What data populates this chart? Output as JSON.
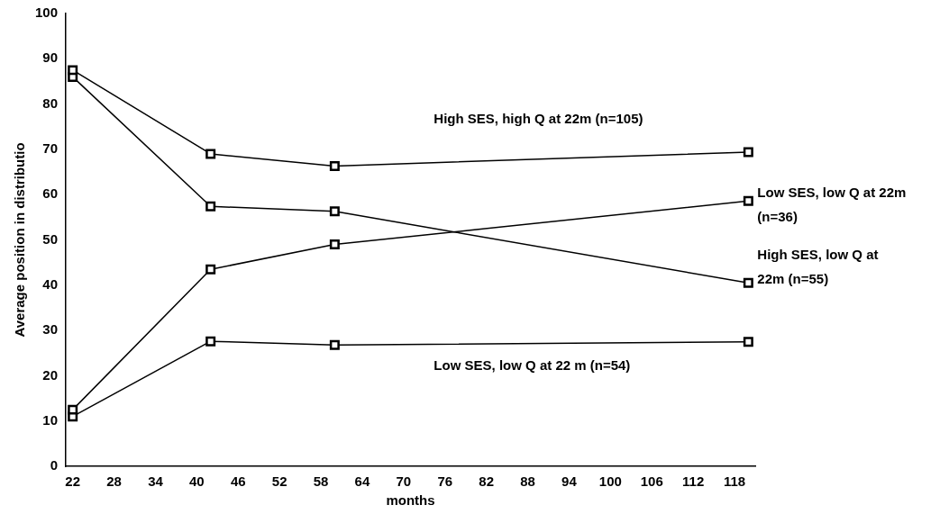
{
  "chart_data": {
    "type": "line",
    "xlabel": "months",
    "ylabel": "Average position in distributio",
    "xlim": [
      21,
      121
    ],
    "xticks": [
      22,
      28,
      34,
      40,
      46,
      52,
      58,
      64,
      70,
      76,
      82,
      88,
      94,
      100,
      106,
      112,
      118
    ],
    "ylim": [
      0,
      100
    ],
    "yticks": [
      0,
      10,
      20,
      30,
      40,
      50,
      60,
      70,
      80,
      90,
      100
    ],
    "grid": false,
    "legend": false,
    "marker": "square",
    "line_style": "solid",
    "series": [
      {
        "name": "High SES, high Q at 22m (n=105)",
        "color": "#000000",
        "x": [
          22,
          42,
          60,
          120
        ],
        "values": [
          87.5,
          69,
          66.3,
          69.4
        ]
      },
      {
        "name": "Low SES, low Q at 22m (n=36)",
        "color": "#000000",
        "x": [
          22,
          42,
          60,
          120
        ],
        "values": [
          12.5,
          43.5,
          49,
          58.6
        ]
      },
      {
        "name": "High SES, low Q at 22m (n=55)",
        "color": "#000000",
        "x": [
          22,
          42,
          60,
          120
        ],
        "values": [
          86,
          57.4,
          56.3,
          40.5
        ]
      },
      {
        "name": "Low SES, low Q at 22 m (n=54)",
        "color": "#000000",
        "x": [
          22,
          42,
          60,
          120
        ],
        "values": [
          11,
          27.6,
          26.8,
          27.5
        ]
      }
    ]
  }
}
